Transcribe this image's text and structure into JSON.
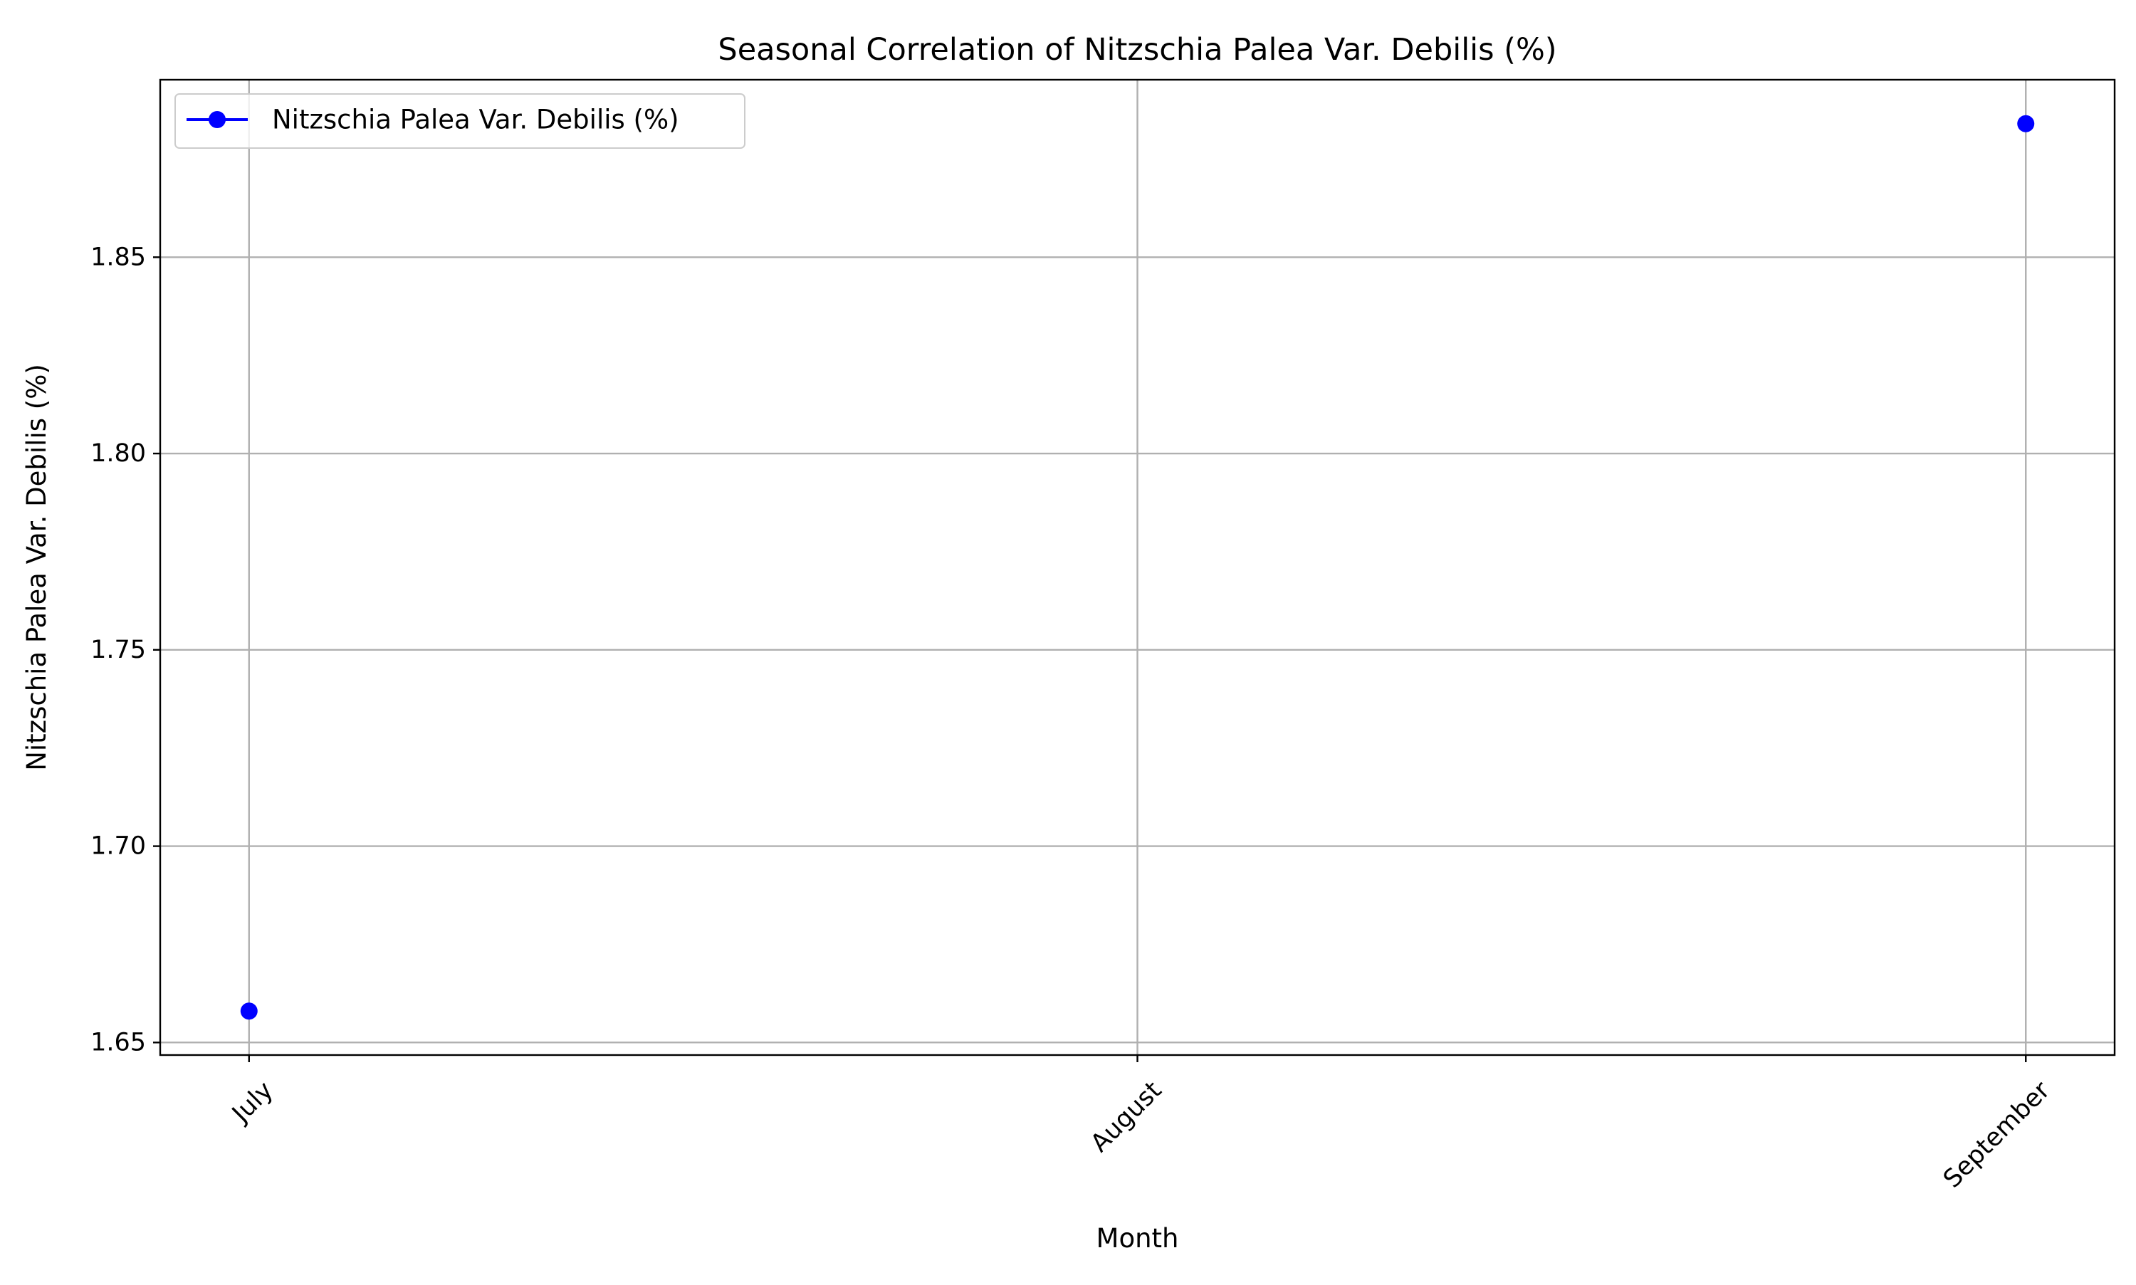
{
  "chart_data": {
    "type": "line",
    "title": "Seasonal Correlation of Nitzschia Palea Var. Debilis (%)",
    "xlabel": "Month",
    "ylabel": "Nitzschia Palea Var. Debilis (%)",
    "categories": [
      "July",
      "August",
      "September"
    ],
    "series": [
      {
        "name": "Nitzschia Palea Var. Debilis (%)",
        "color": "#0000ff",
        "marker": "circle",
        "values": [
          1.658,
          null,
          1.884
        ]
      }
    ],
    "yticks": [
      1.65,
      1.7,
      1.75,
      1.8,
      1.85
    ],
    "ytick_labels": [
      "1.65",
      "1.70",
      "1.75",
      "1.80",
      "1.85"
    ],
    "ylim": [
      1.6468,
      1.8952
    ],
    "grid": true,
    "legend_position": "top-left",
    "xtick_rotation_deg": 45
  }
}
